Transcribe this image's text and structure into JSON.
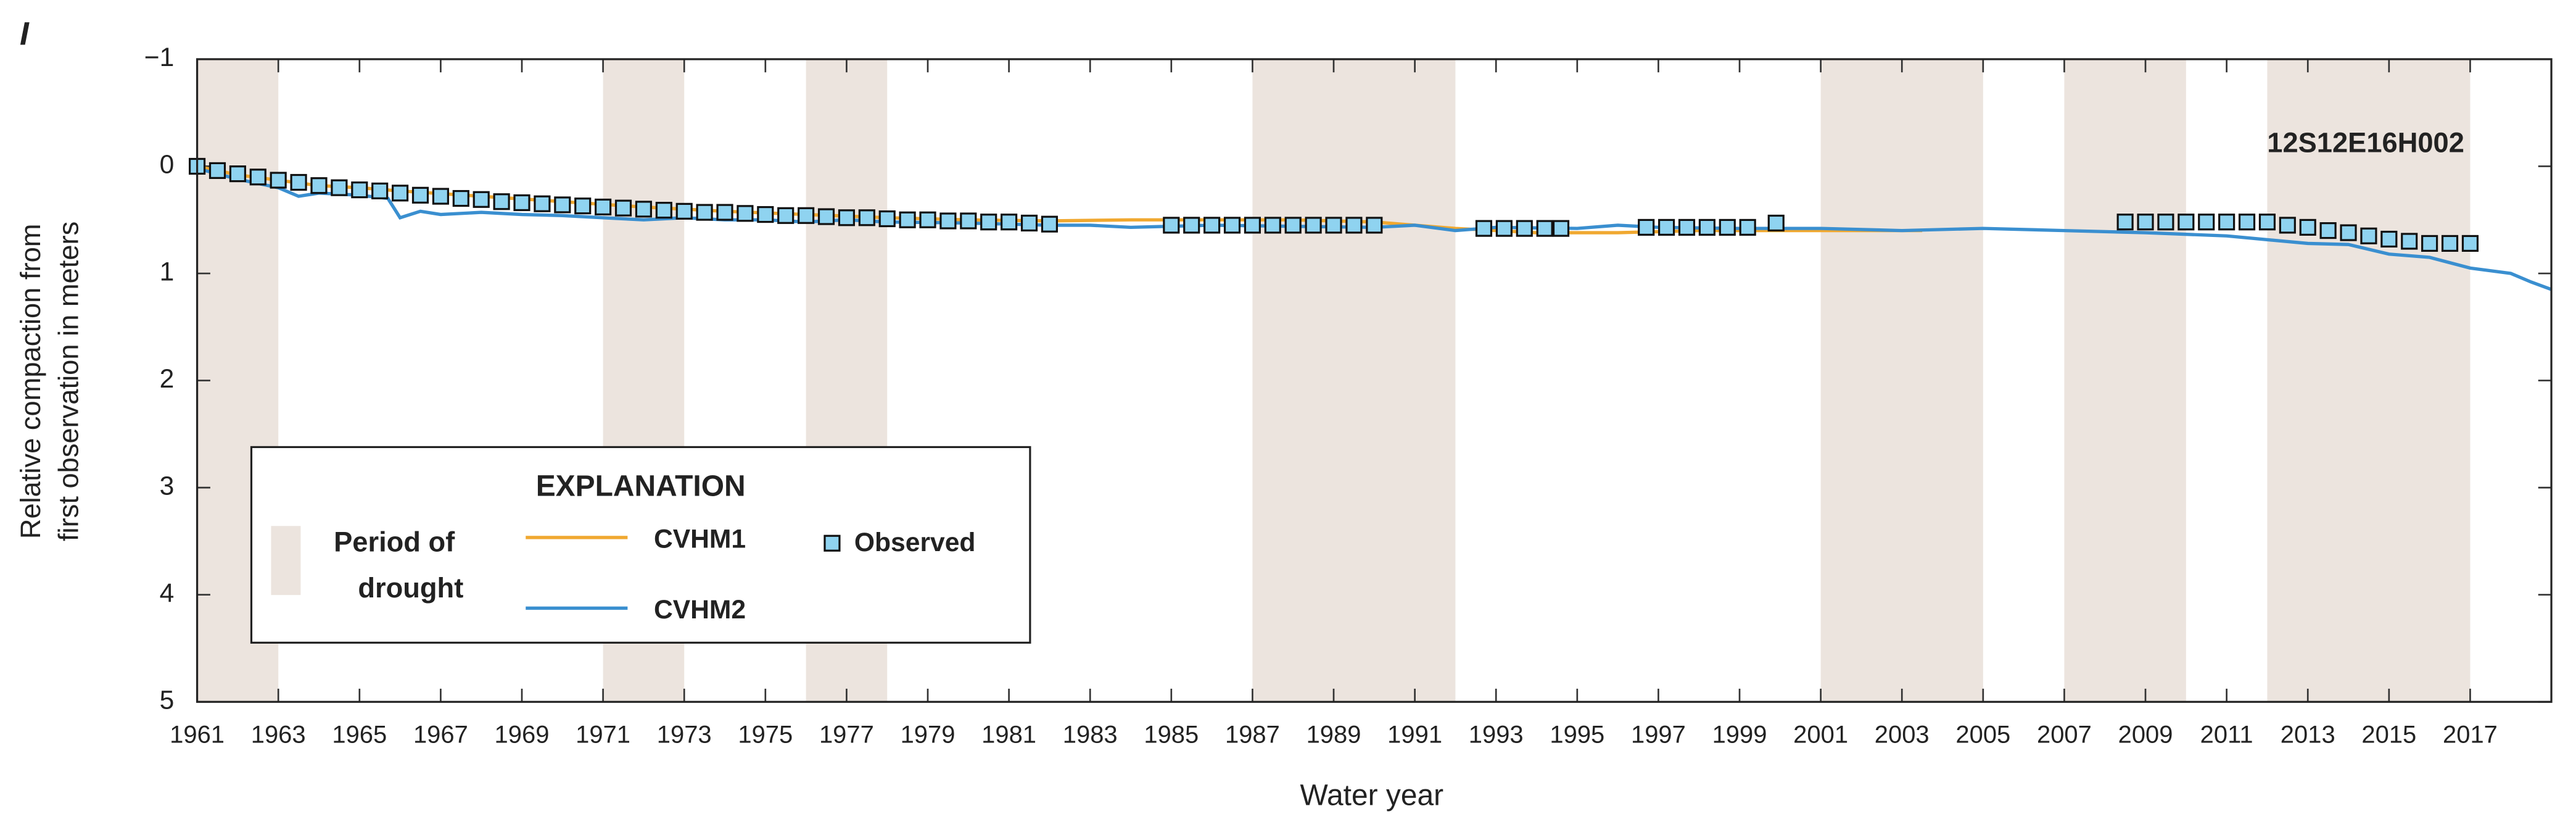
{
  "chart_data": {
    "type": "line",
    "panel_label": "I",
    "station": "12S12E16H002",
    "xlabel": "Water year",
    "ylabel": [
      "Relative compaction from",
      "first observation in meters"
    ],
    "xlim": [
      1961,
      2019
    ],
    "ylim": [
      -1,
      5
    ],
    "y_inverted": true,
    "xticks": [
      1961,
      1963,
      1965,
      1967,
      1969,
      1971,
      1973,
      1975,
      1977,
      1979,
      1981,
      1983,
      1985,
      1987,
      1989,
      1991,
      1993,
      1995,
      1997,
      1999,
      2001,
      2003,
      2005,
      2007,
      2009,
      2011,
      2013,
      2015,
      2017
    ],
    "yticks": [
      {
        "value": -1,
        "label": "−1"
      },
      0,
      1,
      2,
      3,
      4,
      5
    ],
    "grid": false,
    "drought_color": "#ece4de",
    "drought_periods": [
      [
        1961,
        1963
      ],
      [
        1971,
        1973
      ],
      [
        1976,
        1978
      ],
      [
        1987,
        1992
      ],
      [
        2001,
        2005
      ],
      [
        2007,
        2010
      ],
      [
        2012,
        2017
      ]
    ],
    "legend_title": "EXPLANATION",
    "drought_label": [
      "Period of",
      "drought"
    ],
    "legend_position": "lower left",
    "series": [
      {
        "name": "CVHM1",
        "color": "#f0a830",
        "marker": "none",
        "x": [
          1961,
          1962,
          1963,
          1964,
          1965,
          1966,
          1968,
          1970,
          1972,
          1974,
          1976,
          1978,
          1980,
          1982,
          1984,
          1986,
          1988,
          1990,
          1992,
          1994,
          1996,
          1998,
          2000,
          2002,
          2003.5
        ],
        "values": [
          0,
          0.08,
          0.13,
          0.18,
          0.2,
          0.23,
          0.28,
          0.33,
          0.38,
          0.42,
          0.45,
          0.48,
          0.5,
          0.51,
          0.5,
          0.5,
          0.5,
          0.52,
          0.58,
          0.62,
          0.62,
          0.6,
          0.6,
          0.6,
          0.6
        ]
      },
      {
        "name": "CVHM2",
        "color": "#3a8fd0",
        "marker": "none",
        "x": [
          1961,
          1962,
          1963,
          1963.5,
          1964,
          1965,
          1965.7,
          1966,
          1966.5,
          1967,
          1968,
          1969,
          1970,
          1971,
          1972,
          1973,
          1974,
          1975,
          1976,
          1977,
          1978,
          1980,
          1982,
          1983,
          1984,
          1986,
          1988,
          1990,
          1991,
          1992,
          1993,
          1995,
          1996,
          1997,
          1999,
          2001,
          2003,
          2005,
          2007,
          2009,
          2011,
          2013,
          2014,
          2015,
          2016,
          2017,
          2018,
          2018.5,
          2019
        ],
        "values": [
          0.02,
          0.12,
          0.2,
          0.28,
          0.25,
          0.27,
          0.3,
          0.48,
          0.42,
          0.45,
          0.43,
          0.45,
          0.46,
          0.48,
          0.5,
          0.48,
          0.5,
          0.5,
          0.52,
          0.5,
          0.52,
          0.53,
          0.55,
          0.55,
          0.57,
          0.55,
          0.56,
          0.57,
          0.55,
          0.6,
          0.57,
          0.58,
          0.55,
          0.57,
          0.58,
          0.58,
          0.6,
          0.58,
          0.6,
          0.62,
          0.65,
          0.72,
          0.73,
          0.82,
          0.85,
          0.95,
          1.0,
          1.08,
          1.15
        ]
      },
      {
        "name": "Observed",
        "color": "#8fd3f0",
        "marker": "square",
        "x": [
          1961,
          1961.5,
          1962,
          1962.5,
          1963,
          1963.5,
          1964,
          1964.5,
          1965,
          1965.5,
          1966,
          1966.5,
          1967,
          1967.5,
          1968,
          1968.5,
          1969,
          1969.5,
          1970,
          1970.5,
          1971,
          1971.5,
          1972,
          1972.5,
          1973,
          1973.5,
          1974,
          1974.5,
          1975,
          1975.5,
          1976,
          1976.5,
          1977,
          1977.5,
          1978,
          1978.5,
          1979,
          1979.5,
          1980,
          1980.5,
          1981,
          1981.5,
          1982,
          1985,
          1985.5,
          1986,
          1986.5,
          1987,
          1987.5,
          1988,
          1988.5,
          1989,
          1989.5,
          1990,
          1992.7,
          1993.2,
          1993.7,
          1994.2,
          1994.6,
          1996.7,
          1997.2,
          1997.7,
          1998.2,
          1998.7,
          1999.2,
          1999.9,
          2008.5,
          2009,
          2009.5,
          2010,
          2010.5,
          2011,
          2011.5,
          2012,
          2012.5,
          2013,
          2013.5,
          2014,
          2014.5,
          2015,
          2015.5,
          2016,
          2016.5,
          2017
        ],
        "values": [
          0,
          0.04,
          0.07,
          0.1,
          0.13,
          0.15,
          0.18,
          0.2,
          0.22,
          0.23,
          0.25,
          0.27,
          0.28,
          0.3,
          0.31,
          0.33,
          0.34,
          0.35,
          0.36,
          0.37,
          0.38,
          0.39,
          0.4,
          0.41,
          0.42,
          0.43,
          0.43,
          0.44,
          0.45,
          0.46,
          0.46,
          0.47,
          0.48,
          0.48,
          0.49,
          0.5,
          0.5,
          0.51,
          0.51,
          0.52,
          0.52,
          0.53,
          0.54,
          0.55,
          0.55,
          0.55,
          0.55,
          0.55,
          0.55,
          0.55,
          0.55,
          0.55,
          0.55,
          0.55,
          0.58,
          0.58,
          0.58,
          0.58,
          0.58,
          0.57,
          0.57,
          0.57,
          0.57,
          0.57,
          0.57,
          0.53,
          0.52,
          0.52,
          0.52,
          0.52,
          0.52,
          0.52,
          0.52,
          0.52,
          0.55,
          0.57,
          0.6,
          0.62,
          0.65,
          0.68,
          0.7,
          0.72,
          0.72,
          0.72
        ]
      }
    ]
  }
}
